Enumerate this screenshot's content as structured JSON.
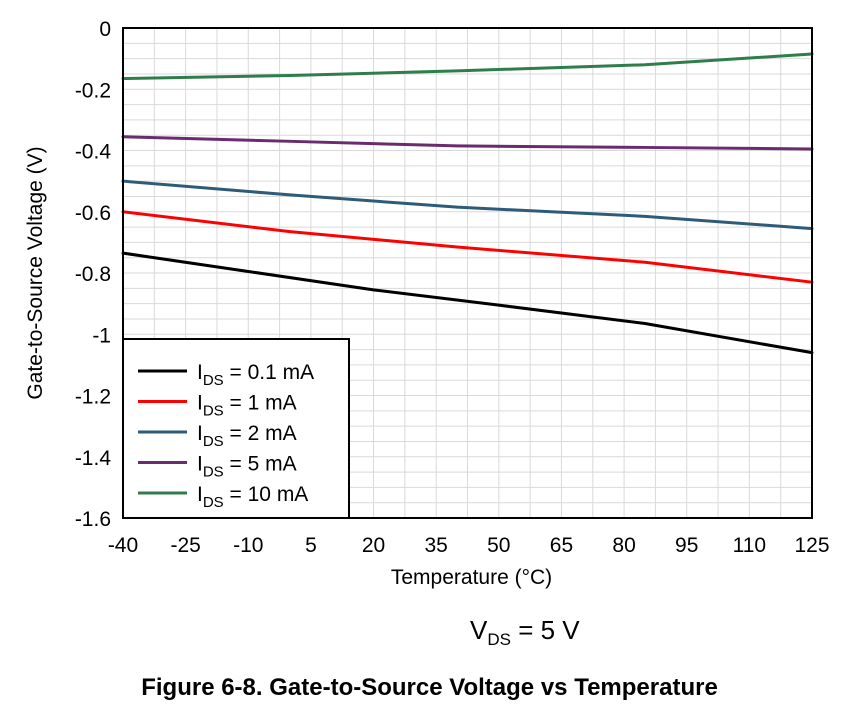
{
  "chart_data": {
    "type": "line",
    "xlabel": "Temperature (°C)",
    "ylabel": "Gate-to-Source Voltage (V)",
    "xlim": [
      -40,
      125
    ],
    "ylim": [
      -1.6,
      0
    ],
    "xticks": [
      -40,
      -25,
      -10,
      5,
      20,
      35,
      50,
      65,
      80,
      95,
      110,
      125
    ],
    "yticks": [
      0,
      -0.2,
      -0.4,
      -0.6,
      -0.8,
      -1,
      -1.2,
      -1.4,
      -1.6
    ],
    "ytick_labels": [
      "0",
      "-0.2",
      "-0.4",
      "-0.6",
      "-0.8",
      "-1",
      "-1.2",
      "-1.4",
      "-1.6"
    ],
    "grid": true,
    "legend_position": "bottom-left",
    "series": [
      {
        "name": "0.1 mA",
        "color": "#000000",
        "x": [
          -40,
          -10,
          20,
          50,
          85,
          125
        ],
        "y": [
          -0.735,
          -0.795,
          -0.855,
          -0.905,
          -0.965,
          -1.06
        ]
      },
      {
        "name": "1 mA",
        "color": "#ff0000",
        "x": [
          -40,
          0,
          40,
          85,
          125
        ],
        "y": [
          -0.6,
          -0.665,
          -0.715,
          -0.765,
          -0.83
        ]
      },
      {
        "name": "2 mA",
        "color": "#2e5b78",
        "x": [
          -40,
          0,
          40,
          85,
          125
        ],
        "y": [
          -0.5,
          -0.545,
          -0.585,
          -0.615,
          -0.655
        ]
      },
      {
        "name": "5 mA",
        "color": "#6a2c6e",
        "x": [
          -40,
          0,
          40,
          85,
          125
        ],
        "y": [
          -0.355,
          -0.37,
          -0.385,
          -0.39,
          -0.395
        ]
      },
      {
        "name": "10 mA",
        "color": "#2f7d4b",
        "x": [
          -40,
          0,
          40,
          85,
          125
        ],
        "y": [
          -0.165,
          -0.155,
          -0.14,
          -0.12,
          -0.085
        ]
      }
    ]
  },
  "legend": {
    "prefix_main": "I",
    "prefix_sub": "DS",
    "separator": " = "
  },
  "condition": {
    "main": "V",
    "sub": "DS",
    "rest": " = 5 V"
  },
  "caption": "Figure 6-8. Gate-to-Source Voltage vs Temperature"
}
